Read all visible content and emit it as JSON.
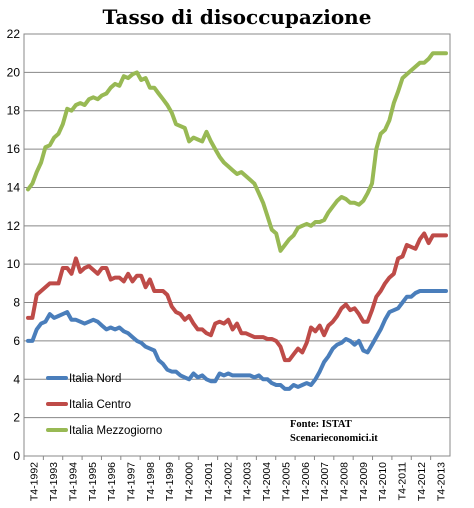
{
  "chart_data": {
    "type": "line",
    "title": "Tasso di disoccupazione",
    "xlabel": "",
    "ylabel": "",
    "ylim": [
      0,
      22
    ],
    "yticks": [
      "0",
      "2",
      "4",
      "6",
      "8",
      "10",
      "12",
      "14",
      "16",
      "18",
      "20",
      "22"
    ],
    "x_period_start": "1992-Q4",
    "x_period_end": "2013-Q4",
    "xticks": [
      "T4-1992",
      "T4-1993",
      "T4-1994",
      "T4-1995",
      "T4-1996",
      "T4-1997",
      "T4-1998",
      "T4-1999",
      "T4-2000",
      "T4-2001",
      "T4-2002",
      "T4-2003",
      "T4-2004",
      "T4-2005",
      "T4-2006",
      "T4-2007",
      "T4-2008",
      "T4-2009",
      "T4-2010",
      "T4-2011",
      "T4-2012",
      "T4-2013"
    ],
    "grid": true,
    "legend_position": "bottom-left",
    "source_lines": [
      "Fonte: ISTAT",
      "Scenarieconomici.it"
    ],
    "series": [
      {
        "name": "Italia Nord",
        "color": "#4a7ebb",
        "values": [
          6.0,
          6.0,
          6.6,
          6.9,
          7.0,
          7.4,
          7.2,
          7.3,
          7.4,
          7.5,
          7.1,
          7.1,
          7.0,
          6.9,
          7.0,
          7.1,
          7.0,
          6.8,
          6.6,
          6.7,
          6.6,
          6.7,
          6.5,
          6.4,
          6.2,
          6.0,
          5.9,
          5.7,
          5.6,
          5.5,
          5.0,
          4.8,
          4.5,
          4.4,
          4.4,
          4.2,
          4.1,
          4.0,
          4.3,
          4.1,
          4.2,
          4.0,
          3.9,
          3.9,
          4.3,
          4.2,
          4.3,
          4.2,
          4.2,
          4.2,
          4.2,
          4.2,
          4.1,
          4.2,
          4.0,
          4.0,
          3.8,
          3.7,
          3.7,
          3.5,
          3.5,
          3.7,
          3.6,
          3.7,
          3.8,
          3.7,
          4.0,
          4.4,
          4.9,
          5.2,
          5.6,
          5.8,
          5.9,
          6.1,
          6.0,
          5.8,
          6.0,
          5.5,
          5.4,
          5.8,
          6.2,
          6.6,
          7.1,
          7.5,
          7.6,
          7.7,
          8.0,
          8.3,
          8.3,
          8.5,
          8.6,
          8.6,
          8.6,
          8.6,
          8.6,
          8.6,
          8.6
        ]
      },
      {
        "name": "Italia Centro",
        "color": "#be4b48",
        "values": [
          7.2,
          7.2,
          8.4,
          8.6,
          8.8,
          9.0,
          9.0,
          9.0,
          9.8,
          9.8,
          9.5,
          10.3,
          9.6,
          9.8,
          9.9,
          9.7,
          9.5,
          9.8,
          9.8,
          9.2,
          9.3,
          9.3,
          9.1,
          9.5,
          9.1,
          9.4,
          9.4,
          8.8,
          9.2,
          8.6,
          8.6,
          8.6,
          8.4,
          7.8,
          7.5,
          7.4,
          7.1,
          7.3,
          6.9,
          6.6,
          6.6,
          6.4,
          6.3,
          6.9,
          7.0,
          6.9,
          7.1,
          6.6,
          6.9,
          6.4,
          6.4,
          6.3,
          6.2,
          6.2,
          6.2,
          6.1,
          6.1,
          6.0,
          5.7,
          5.0,
          5.0,
          5.3,
          5.6,
          5.4,
          5.9,
          6.7,
          6.5,
          6.8,
          6.3,
          6.8,
          7.0,
          7.3,
          7.7,
          7.9,
          7.6,
          7.7,
          7.4,
          7.0,
          7.0,
          7.6,
          8.3,
          8.6,
          9.0,
          9.3,
          9.5,
          10.3,
          10.4,
          11.0,
          10.9,
          10.8,
          11.3,
          11.6,
          11.1,
          11.5,
          11.5,
          11.5,
          11.5
        ]
      },
      {
        "name": "Italia Mezzogiorno",
        "color": "#98b954",
        "values": [
          13.9,
          14.2,
          14.8,
          15.3,
          16.1,
          16.2,
          16.6,
          16.8,
          17.3,
          18.1,
          18.0,
          18.3,
          18.4,
          18.3,
          18.6,
          18.7,
          18.6,
          18.8,
          18.9,
          19.2,
          19.4,
          19.3,
          19.8,
          19.7,
          19.9,
          20.0,
          19.6,
          19.7,
          19.2,
          19.2,
          18.9,
          18.6,
          18.3,
          17.9,
          17.3,
          17.2,
          17.1,
          16.4,
          16.6,
          16.5,
          16.4,
          16.9,
          16.4,
          16.0,
          15.6,
          15.3,
          15.1,
          14.9,
          14.7,
          14.8,
          14.6,
          14.4,
          14.2,
          13.7,
          13.2,
          12.5,
          11.8,
          11.6,
          10.7,
          11.0,
          11.3,
          11.5,
          11.9,
          12.0,
          12.1,
          12.0,
          12.2,
          12.2,
          12.3,
          12.7,
          13.0,
          13.3,
          13.5,
          13.4,
          13.2,
          13.2,
          13.1,
          13.3,
          13.7,
          14.2,
          16.0,
          16.8,
          17.0,
          17.5,
          18.4,
          19.0,
          19.7,
          19.9,
          20.1,
          20.3,
          20.5,
          20.5,
          20.7,
          21.0,
          21.0,
          21.0,
          21.0
        ]
      }
    ]
  }
}
